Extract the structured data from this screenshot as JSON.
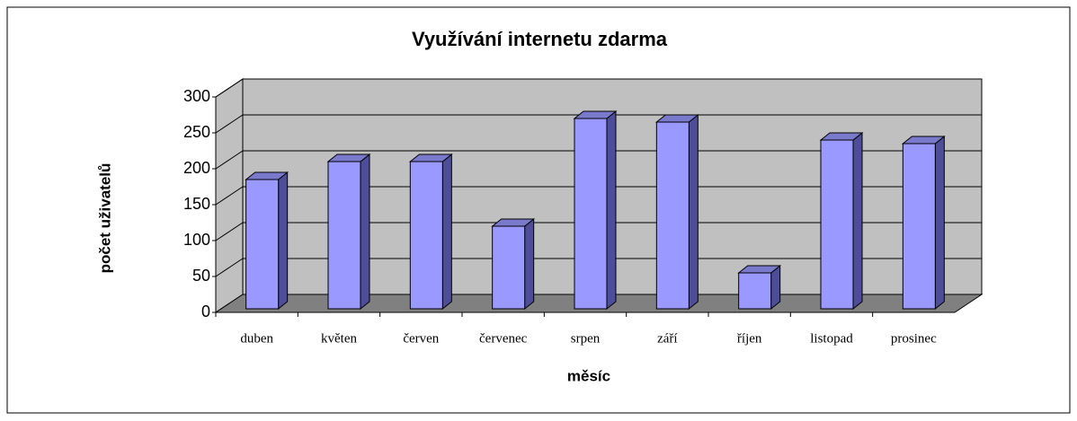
{
  "chart_data": {
    "type": "bar3d",
    "title": "Využívání internetu zdarma",
    "x_label": "měsíc",
    "y_label": "počet uživatelů",
    "categories": [
      "duben",
      "květen",
      "červen",
      "červenec",
      "srpen",
      "září",
      "říjen",
      "listopad",
      "prosinec"
    ],
    "values": [
      185,
      210,
      210,
      120,
      270,
      265,
      55,
      240,
      235
    ],
    "color": "#9999ff",
    "ylim": [
      0,
      300
    ],
    "yticks": [
      0,
      50,
      100,
      150,
      200,
      250,
      300
    ],
    "grid": true
  }
}
